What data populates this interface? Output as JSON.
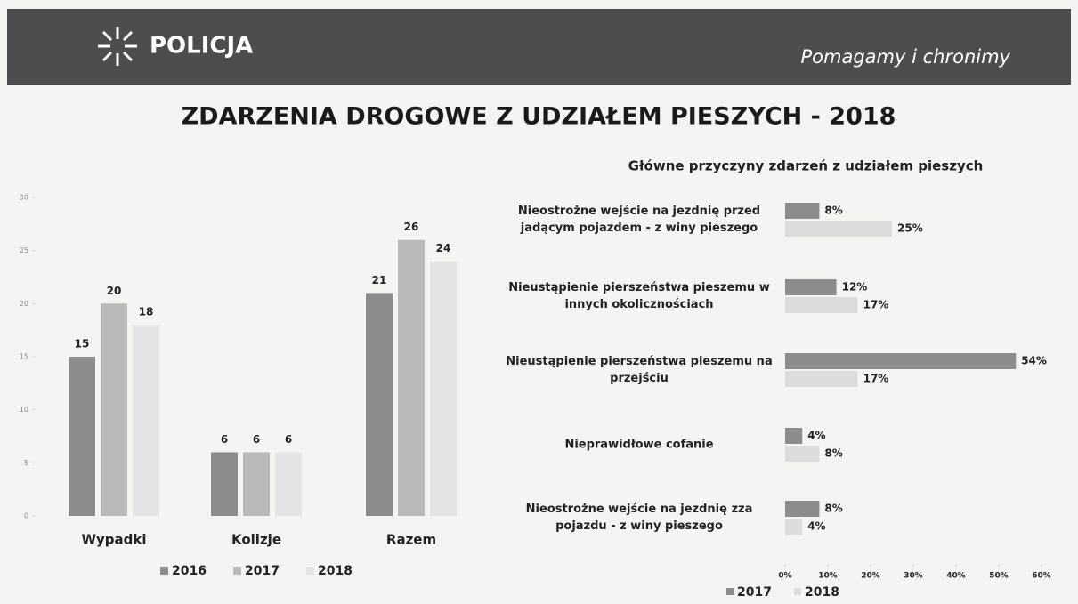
{
  "header": {
    "logo": "POLICJA",
    "slogan": "Pomagamy i chronimy"
  },
  "title": "ZDARZENIA DROGOWE Z UDZIAŁEM PIESZYCH - 2018",
  "chart_data": [
    {
      "type": "bar",
      "categories": [
        "Wypadki",
        "Kolizje",
        "Razem"
      ],
      "series": [
        {
          "name": "2016",
          "color": "#8c8c8c",
          "values": [
            15,
            6,
            21
          ]
        },
        {
          "name": "2017",
          "color": "#b9b9b9",
          "values": [
            20,
            6,
            26
          ]
        },
        {
          "name": "2018",
          "color": "#e4e4e4",
          "values": [
            18,
            6,
            24
          ]
        }
      ],
      "ylim": [
        0,
        30
      ],
      "yticks": [
        0,
        5,
        10,
        15,
        20,
        25,
        30
      ],
      "legend": "bottom"
    },
    {
      "type": "hbar",
      "title": "Główne przyczyny zdarzeń z udziałem pieszych",
      "categories": [
        "Nieostrożne wejście na jezdnię przed jadącym pojazdem - z winy pieszego",
        "Nieustąpienie pierszeństwa pieszemu w innych okolicznościach",
        "Nieustąpienie pierszeństwa pieszemu na przejściu",
        "Nieprawidłowe cofanie",
        "Nieostrożne wejście na jezdnię zza pojazdu - z winy pieszego"
      ],
      "series": [
        {
          "name": "2017",
          "color": "#8c8c8c",
          "values": [
            8,
            12,
            54,
            4,
            8
          ],
          "value_labels": [
            "8%",
            "12%",
            "54%",
            "4%",
            "8%"
          ]
        },
        {
          "name": "2018",
          "color": "#dcdcdc",
          "values": [
            25,
            17,
            17,
            8,
            4
          ],
          "value_labels": [
            "25%",
            "17%",
            "17%",
            "8%",
            "4%"
          ]
        }
      ],
      "xlim": [
        0,
        60
      ],
      "xticks": [
        {
          "value": 0,
          "label": "0%"
        },
        {
          "value": 10,
          "label": "10%"
        },
        {
          "value": 20,
          "label": "20%"
        },
        {
          "value": 30,
          "label": "30%"
        },
        {
          "value": 40,
          "label": "40%"
        },
        {
          "value": 50,
          "label": "50%"
        },
        {
          "value": 60,
          "label": "60%"
        }
      ],
      "legend": "bottom"
    }
  ]
}
